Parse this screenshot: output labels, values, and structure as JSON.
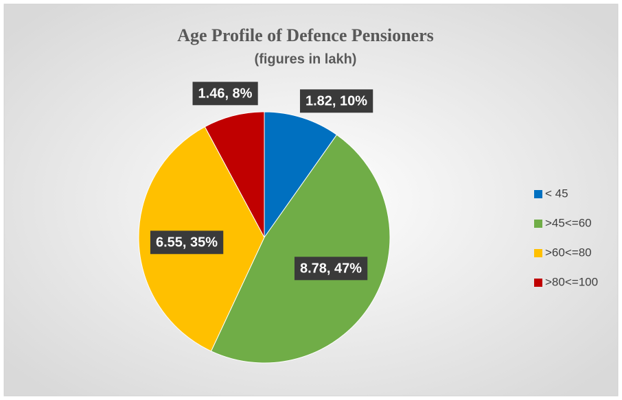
{
  "chart_data": {
    "type": "pie",
    "title": "Age Profile of Defence Pensioners",
    "subtitle": "(figures in lakh)",
    "categories": [
      "< 45",
      ">45<=60",
      ">60<=80",
      ">80<=100"
    ],
    "values": [
      1.82,
      8.78,
      6.55,
      1.46
    ],
    "value_labels": [
      "1.82, 10%",
      "8.78, 47%",
      "6.55, 35%",
      "1.46, 8%"
    ],
    "colors": [
      "#0070c0",
      "#70ad47",
      "#ffc000",
      "#c00000"
    ],
    "legend": "right"
  }
}
